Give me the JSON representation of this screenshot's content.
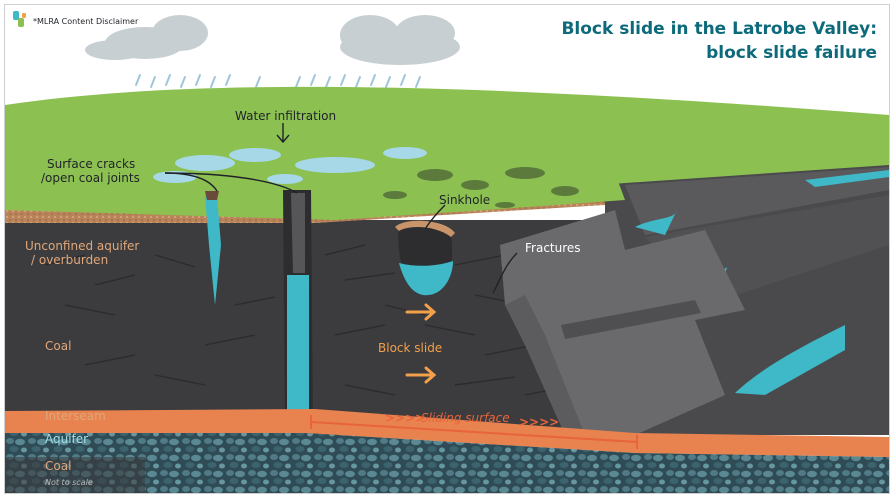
{
  "header": {
    "disclaimer": "*MLRA Content Disclaimer",
    "title_line1": "Block slide in the Latrobe Valley:",
    "title_line2": "block slide failure"
  },
  "labels": {
    "water_infiltration": "Water infiltration",
    "surface_cracks_line1": "Surface cracks",
    "surface_cracks_line2": "/open coal joints",
    "sinkhole": "Sinkhole",
    "fractures": "Fractures",
    "unconfined_aquifer_line1": "Unconfined aquifer",
    "unconfined_aquifer_line2": "/ overburden",
    "coal_upper": "Coal",
    "block_slide": "Block slide",
    "interseam": "Interseam",
    "aquifer": "Aquifer",
    "coal_lower": "Coal",
    "sliding_surface": "Sliding surface",
    "sliding_surface_chevrons_left": ">>>>",
    "sliding_surface_chevrons_right": ">>>>",
    "not_to_scale": "Not to scale"
  },
  "colors": {
    "title": "#0d6a7a",
    "grass": "#8cc152",
    "coal": "#3c3c3e",
    "water": "#3fb8c8",
    "overburden": "#c9946a",
    "interseam": "#e8824e",
    "block": "#6a6a6c",
    "arrow": "#f2a04a"
  }
}
